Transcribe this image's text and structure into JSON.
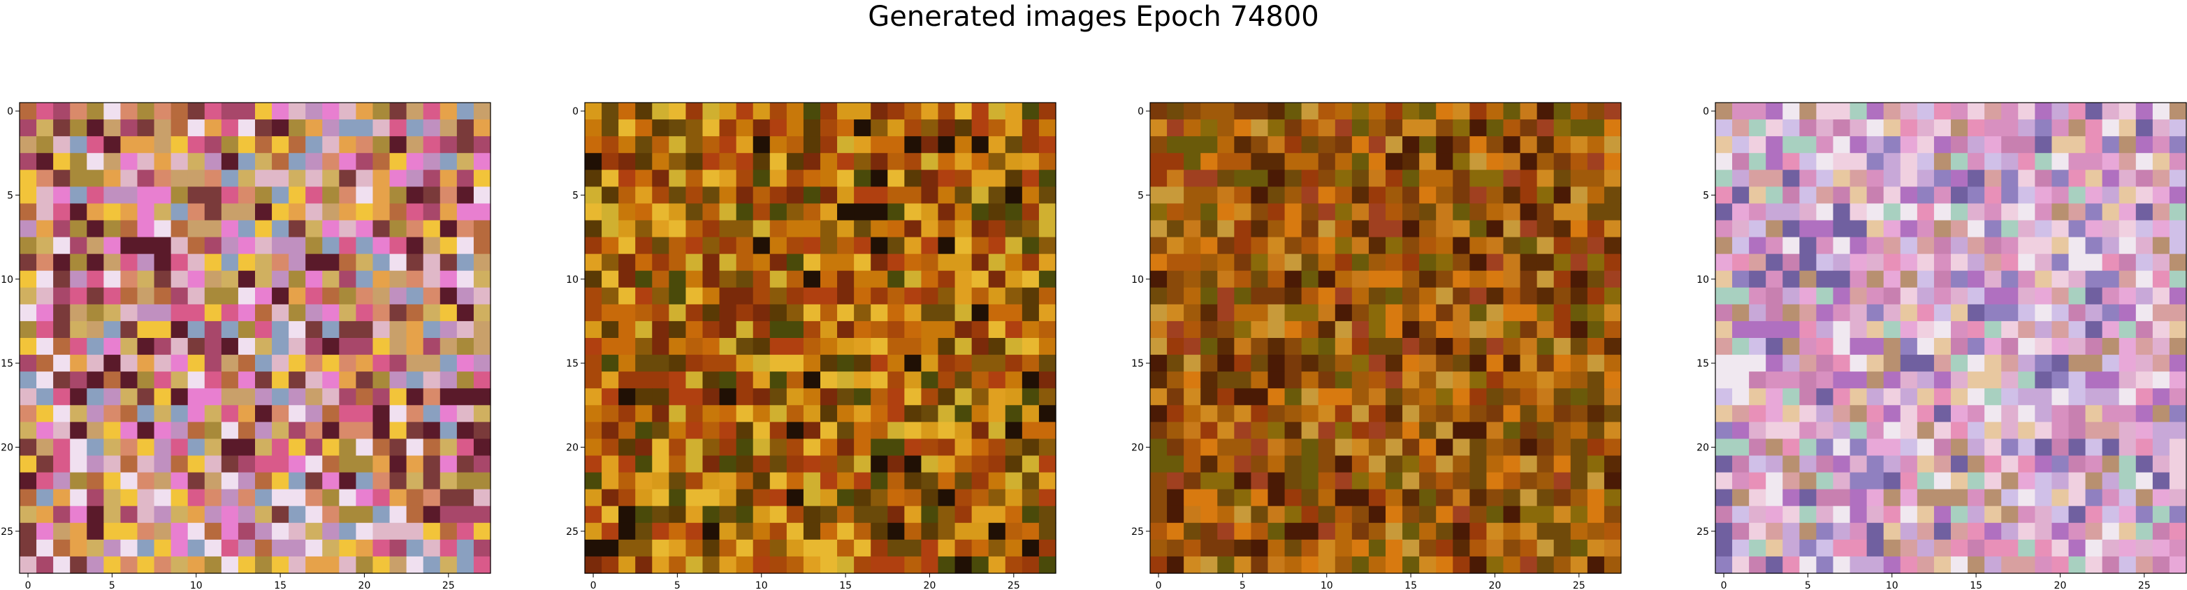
{
  "title": "Generated images Epoch 74800",
  "chart_data": [
    {
      "type": "heatmap",
      "name": "panel-1",
      "grid_size": 28,
      "xlim": [
        -0.5,
        27.5
      ],
      "ylim": [
        27.5,
        -0.5
      ],
      "xticks": [
        0,
        5,
        10,
        15,
        20,
        25
      ],
      "yticks": [
        0,
        5,
        10,
        15,
        20,
        25
      ],
      "palette": [
        "#c9a06a",
        "#d98a6a",
        "#e6a24a",
        "#b76a3d",
        "#d95a8a",
        "#a8476a",
        "#e0b8c8",
        "#c090c0",
        "#f2c43a",
        "#8aa0c0",
        "#e87fd0",
        "#a88a3a",
        "#7a3a3a",
        "#f0e0f0",
        "#d0b060",
        "#5a1a2a"
      ],
      "seed": 11
    },
    {
      "type": "heatmap",
      "name": "panel-2",
      "grid_size": 28,
      "xlim": [
        -0.5,
        27.5
      ],
      "ylim": [
        27.5,
        -0.5
      ],
      "xticks": [
        0,
        5,
        10,
        15,
        20,
        25
      ],
      "yticks": [
        0,
        5,
        10,
        15,
        20,
        25
      ],
      "palette": [
        "#b8600a",
        "#c8780a",
        "#8a5a0a",
        "#d89a1a",
        "#9a3a0a",
        "#6a4a0a",
        "#e0a020",
        "#a8480a",
        "#5a3a05",
        "#c86a0a",
        "#7a2a0a",
        "#d0b030",
        "#4a4a0a",
        "#e8b830",
        "#b04010",
        "#201005"
      ],
      "seed": 23
    },
    {
      "type": "heatmap",
      "name": "panel-3",
      "grid_size": 28,
      "xlim": [
        -0.5,
        27.5
      ],
      "ylim": [
        27.5,
        -0.5
      ],
      "xticks": [
        0,
        5,
        10,
        15,
        20,
        25
      ],
      "yticks": [
        0,
        5,
        10,
        15,
        20,
        25
      ],
      "palette": [
        "#a05a0a",
        "#b8680a",
        "#8a4a0a",
        "#c87a1a",
        "#7a3a0a",
        "#6a5a0a",
        "#d08a20",
        "#9a3a0a",
        "#5a2a05",
        "#b0580a",
        "#704a0a",
        "#c89a3a",
        "#8a6a0a",
        "#d87a10",
        "#4a1a05",
        "#a04020"
      ],
      "seed": 37
    },
    {
      "type": "heatmap",
      "name": "panel-4",
      "grid_size": 28,
      "xlim": [
        -0.5,
        27.5
      ],
      "ylim": [
        27.5,
        -0.5
      ],
      "xticks": [
        0,
        5,
        10,
        15,
        20,
        25
      ],
      "yticks": [
        0,
        5,
        10,
        15,
        20,
        25
      ],
      "palette": [
        "#e0b0d0",
        "#d890c0",
        "#c8a8d8",
        "#f0d0e0",
        "#b89070",
        "#e890b8",
        "#d0c0e8",
        "#a8d0c0",
        "#c880b0",
        "#e8c8a0",
        "#b070c0",
        "#f0e8f0",
        "#9080c0",
        "#d8a0a0",
        "#7060a0",
        "#e8a8d8"
      ],
      "seed": 53
    }
  ]
}
